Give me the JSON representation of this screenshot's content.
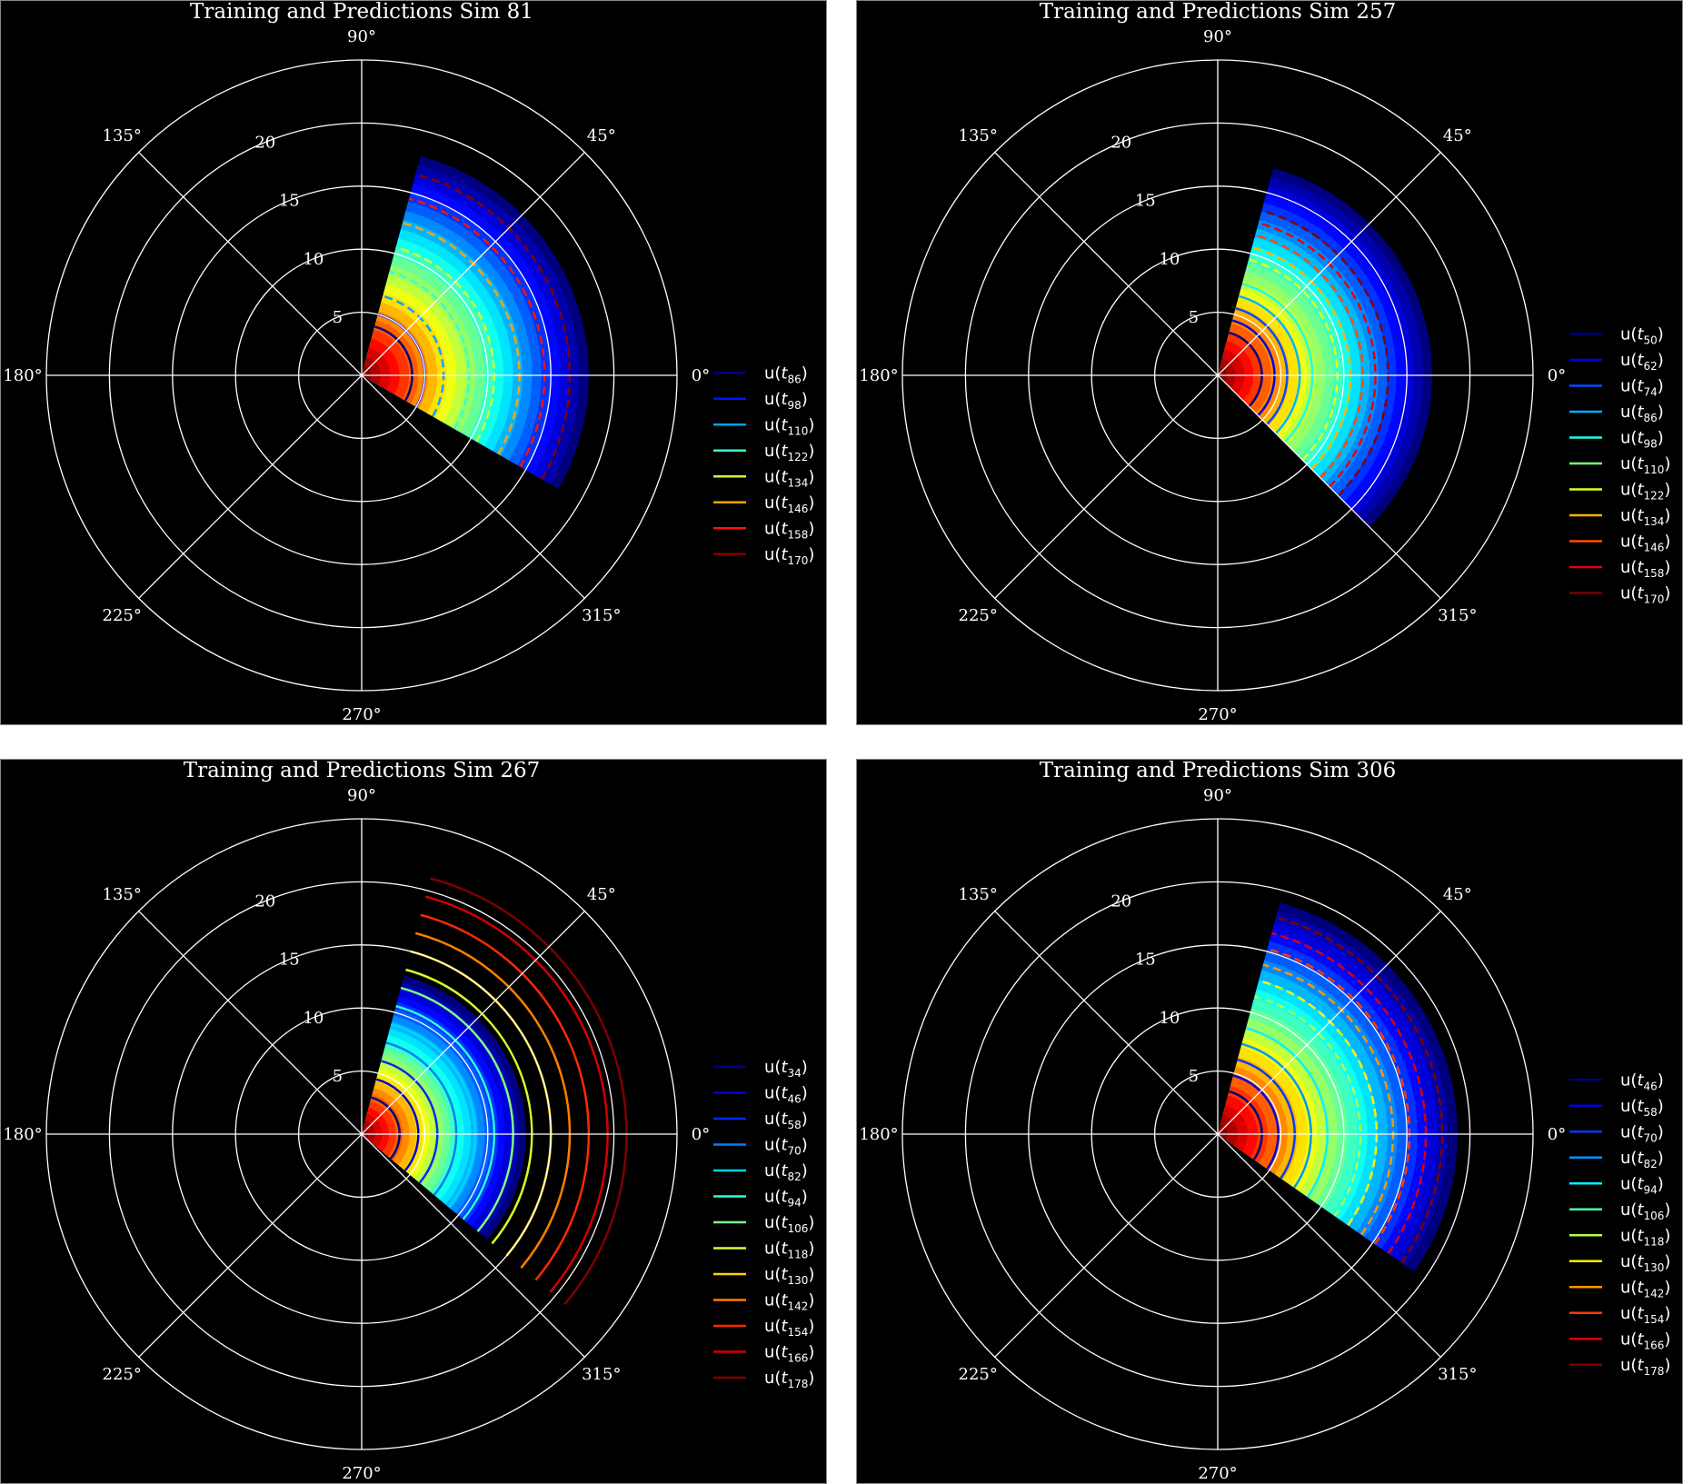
{
  "colormap": [
    "#00007f",
    "#0000ff",
    "#007fff",
    "#00ffff",
    "#7fff7f",
    "#ffff00",
    "#ff7f00",
    "#ff0000",
    "#7f0000"
  ],
  "angle_tick_labels": [
    "0°",
    "45°",
    "90°",
    "135°",
    "180°",
    "225°",
    "270°",
    "315°"
  ],
  "radial_tick_labels": [
    "5",
    "10",
    "15",
    "20"
  ],
  "rmax": 25,
  "chart_data": [
    {
      "type": "polar",
      "title": "Training and Predictions Sim 81",
      "theta_range_deg": [
        -30,
        75
      ],
      "field_extent": 18,
      "series": [
        {
          "name": "u(t86)",
          "sub": "86",
          "radius": 4.0,
          "style": "solid"
        },
        {
          "name": "u(t98)",
          "sub": "98",
          "radius": 5.0,
          "style": "solid"
        },
        {
          "name": "u(t110)",
          "sub": "110",
          "radius": 6.5,
          "style": "dashed"
        },
        {
          "name": "u(t122)",
          "sub": "122",
          "radius": 8.5,
          "style": "dashed"
        },
        {
          "name": "u(t134)",
          "sub": "134",
          "radius": 10.5,
          "style": "dashed"
        },
        {
          "name": "u(t146)",
          "sub": "146",
          "radius": 12.5,
          "style": "dashed"
        },
        {
          "name": "u(t158)",
          "sub": "158",
          "radius": 14.5,
          "style": "dashed"
        },
        {
          "name": "u(t170)",
          "sub": "170",
          "radius": 16.5,
          "style": "dashed"
        }
      ]
    },
    {
      "type": "polar",
      "title": "Training and Predictions Sim 257",
      "theta_range_deg": [
        -45,
        75
      ],
      "field_extent": 17,
      "series": [
        {
          "name": "u(t50)",
          "sub": "50",
          "radius": 3.5,
          "style": "solid"
        },
        {
          "name": "u(t62)",
          "sub": "62",
          "radius": 4.5,
          "style": "solid"
        },
        {
          "name": "u(t74)",
          "sub": "74",
          "radius": 5.5,
          "style": "solid"
        },
        {
          "name": "u(t86)",
          "sub": "86",
          "radius": 6.5,
          "style": "solid"
        },
        {
          "name": "u(t98)",
          "sub": "98",
          "radius": 7.5,
          "style": "solid"
        },
        {
          "name": "u(t110)",
          "sub": "110",
          "radius": 8.5,
          "style": "dashed"
        },
        {
          "name": "u(t122)",
          "sub": "122",
          "radius": 9.5,
          "style": "dashed"
        },
        {
          "name": "u(t134)",
          "sub": "134",
          "radius": 10.5,
          "style": "dashed"
        },
        {
          "name": "u(t146)",
          "sub": "146",
          "radius": 11.5,
          "style": "dashed"
        },
        {
          "name": "u(t158)",
          "sub": "158",
          "radius": 12.5,
          "style": "dashed"
        },
        {
          "name": "u(t170)",
          "sub": "170",
          "radius": 13.5,
          "style": "dashed"
        }
      ]
    },
    {
      "type": "polar",
      "title": "Training and Predictions Sim 267",
      "theta_range_deg": [
        -40,
        75
      ],
      "field_extent": 13,
      "series": [
        {
          "name": "u(t34)",
          "sub": "34",
          "radius": 3.0,
          "style": "solid"
        },
        {
          "name": "u(t46)",
          "sub": "46",
          "radius": 4.5,
          "style": "solid"
        },
        {
          "name": "u(t58)",
          "sub": "58",
          "radius": 6.0,
          "style": "solid"
        },
        {
          "name": "u(t70)",
          "sub": "70",
          "radius": 7.5,
          "style": "solid"
        },
        {
          "name": "u(t82)",
          "sub": "82",
          "radius": 9.0,
          "style": "solid"
        },
        {
          "name": "u(t94)",
          "sub": "94",
          "radius": 10.5,
          "style": "solid"
        },
        {
          "name": "u(t106)",
          "sub": "106",
          "radius": 12.0,
          "style": "solid"
        },
        {
          "name": "u(t118)",
          "sub": "118",
          "radius": 13.5,
          "style": "solid"
        },
        {
          "name": "u(t130)",
          "sub": "130",
          "radius": 15.0,
          "style": "solid"
        },
        {
          "name": "u(t142)",
          "sub": "142",
          "radius": 16.5,
          "style": "solid"
        },
        {
          "name": "u(t154)",
          "sub": "154",
          "radius": 18.0,
          "style": "solid"
        },
        {
          "name": "u(t166)",
          "sub": "166",
          "radius": 19.5,
          "style": "solid"
        },
        {
          "name": "u(t178)",
          "sub": "178",
          "radius": 21.0,
          "style": "solid"
        }
      ]
    },
    {
      "type": "polar",
      "title": "Training and Predictions Sim 306",
      "theta_range_deg": [
        -35,
        75
      ],
      "field_extent": 19,
      "series": [
        {
          "name": "u(t46)",
          "sub": "46",
          "radius": 3.5,
          "style": "solid"
        },
        {
          "name": "u(t58)",
          "sub": "58",
          "radius": 4.8,
          "style": "solid"
        },
        {
          "name": "u(t70)",
          "sub": "70",
          "radius": 6.1,
          "style": "solid"
        },
        {
          "name": "u(t82)",
          "sub": "82",
          "radius": 7.4,
          "style": "solid"
        },
        {
          "name": "u(t94)",
          "sub": "94",
          "radius": 8.7,
          "style": "solid"
        },
        {
          "name": "u(t106)",
          "sub": "106",
          "radius": 10.0,
          "style": "dashed"
        },
        {
          "name": "u(t118)",
          "sub": "118",
          "radius": 11.3,
          "style": "dashed"
        },
        {
          "name": "u(t130)",
          "sub": "130",
          "radius": 12.6,
          "style": "dashed"
        },
        {
          "name": "u(t142)",
          "sub": "142",
          "radius": 13.9,
          "style": "dashed"
        },
        {
          "name": "u(t154)",
          "sub": "154",
          "radius": 15.2,
          "style": "dashed"
        },
        {
          "name": "u(t166)",
          "sub": "166",
          "radius": 16.5,
          "style": "dashed"
        },
        {
          "name": "u(t178)",
          "sub": "178",
          "radius": 17.8,
          "style": "dashed"
        }
      ]
    }
  ]
}
